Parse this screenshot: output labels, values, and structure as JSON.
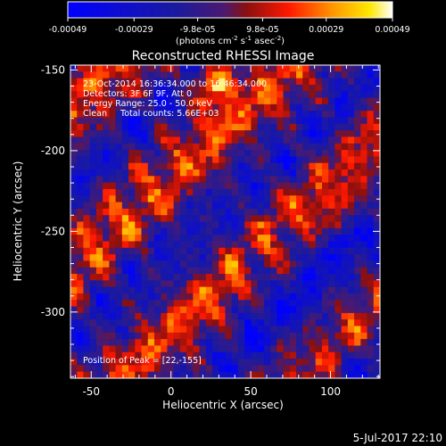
{
  "chart_data": {
    "type": "heatmap",
    "title": "Reconstructed RHESSI Image",
    "xlabel": "Heliocentric X (arcsec)",
    "ylabel": "Heliocentric Y (arcsec)",
    "xlim": [
      -63,
      131
    ],
    "ylim": [
      -341,
      -147
    ],
    "x_ticks": [
      -50,
      0,
      50,
      100
    ],
    "y_ticks": [
      -150,
      -200,
      -250,
      -300
    ],
    "colorbar": {
      "range": [
        -0.00049,
        0.00049
      ],
      "tick_values": [
        -0.00049,
        -0.00029,
        -9.8e-05,
        9.8e-05,
        0.00029,
        0.00049
      ],
      "tick_labels": [
        "-0.00049",
        "-0.00029",
        "-9.8e-05",
        "9.8e-05",
        "0.00029",
        "0.00049"
      ],
      "unit_base": "(photons cm",
      "unit_exp1": "-2",
      "unit_mid": " s",
      "unit_exp2": "-1",
      "unit_mid2": " asec",
      "unit_exp3": "-2",
      "unit_end": ")"
    },
    "annotations": [
      "23-Oct-2014 16:36:34.000 to 16:46:34.000",
      "Detectors: 3F 6F 9F, Att 0",
      "Energy Range: 25.0 - 50.0 keV",
      "Clean     Total counts: 5.66E+03"
    ],
    "peak_label": "Position of Peak = [22,-155]",
    "peak_position": [
      22,
      -155
    ],
    "colors": {
      "background": "#000000",
      "low": "#0000ff",
      "mid": "#5a1e7a",
      "high": "#ffffff",
      "hot": "#ff8800"
    }
  },
  "footer": {
    "date": "5-Jul-2017 22:10"
  }
}
